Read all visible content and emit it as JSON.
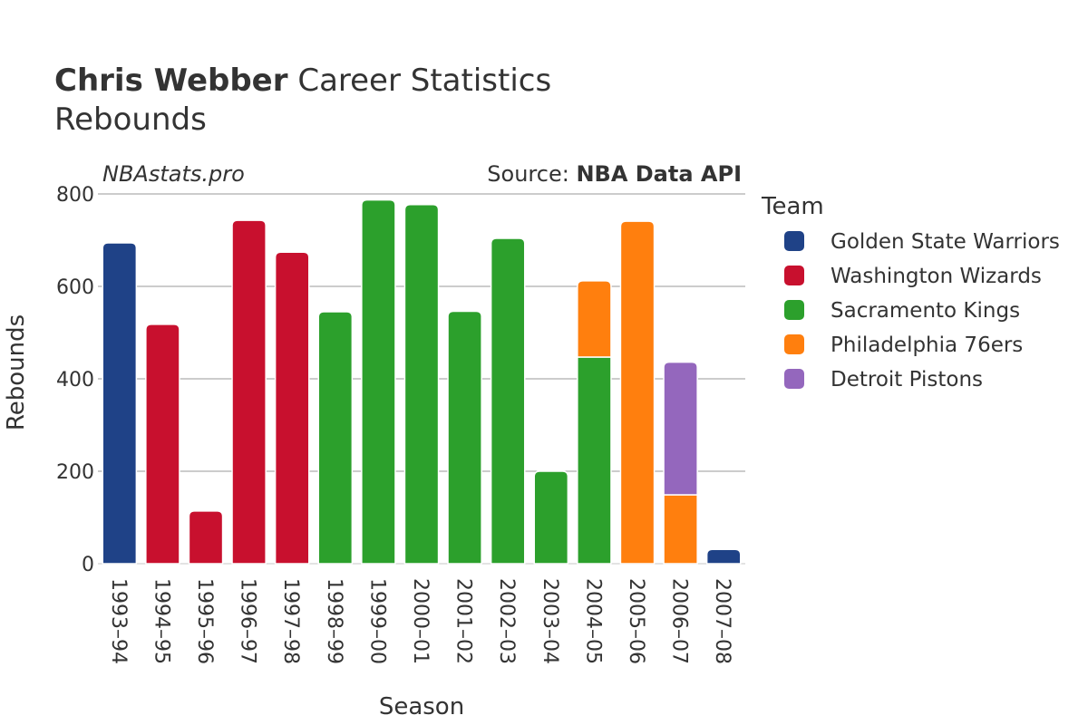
{
  "title": {
    "player": "Chris Webber",
    "rest": " Career Statistics",
    "subtitle": "Rebounds"
  },
  "watermark": "NBAstats.pro",
  "source": {
    "prefix": "Source: ",
    "name": "NBA Data API"
  },
  "legend": {
    "title": "Team"
  },
  "chart_data": {
    "type": "bar",
    "stacked": true,
    "xlabel": "Season",
    "ylabel": "Rebounds",
    "ylim": [
      0,
      800
    ],
    "yticks": [
      0,
      200,
      400,
      600,
      800
    ],
    "grid": true,
    "legend_position": "right",
    "categories": [
      "1993–94",
      "1994–95",
      "1995–96",
      "1996–97",
      "1997–98",
      "1998–99",
      "1999–00",
      "2000–01",
      "2001–02",
      "2002–03",
      "2003–04",
      "2004–05",
      "2005–06",
      "2006–07",
      "2007–08"
    ],
    "series": [
      {
        "name": "Golden State Warriors",
        "color": "#1f4287",
        "values": [
          694,
          0,
          0,
          0,
          0,
          0,
          0,
          0,
          0,
          0,
          0,
          0,
          0,
          0,
          31
        ]
      },
      {
        "name": "Washington Wizards",
        "color": "#c8102e",
        "values": [
          0,
          518,
          114,
          743,
          674,
          0,
          0,
          0,
          0,
          0,
          0,
          0,
          0,
          0,
          0
        ]
      },
      {
        "name": "Sacramento Kings",
        "color": "#2ca02c",
        "values": [
          0,
          0,
          0,
          0,
          0,
          545,
          787,
          777,
          546,
          704,
          200,
          447,
          0,
          0,
          0
        ]
      },
      {
        "name": "Philadelphia 76ers",
        "color": "#ff7f0e",
        "values": [
          0,
          0,
          0,
          0,
          0,
          0,
          0,
          0,
          0,
          0,
          0,
          165,
          741,
          149,
          0
        ]
      },
      {
        "name": "Detroit Pistons",
        "color": "#9467bd",
        "values": [
          0,
          0,
          0,
          0,
          0,
          0,
          0,
          0,
          0,
          0,
          0,
          0,
          0,
          287,
          0
        ]
      }
    ]
  }
}
